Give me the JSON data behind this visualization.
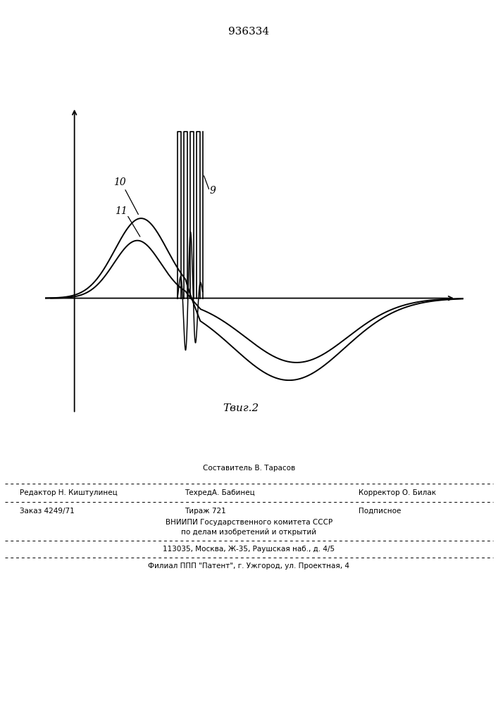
{
  "title": "936334",
  "fig_label": "Τвиг.2",
  "label_10": "10",
  "label_11": "11",
  "label_9": "9",
  "background_color": "#ffffff",
  "line_color": "#000000",
  "footer_line1": "Составитель В. Тарасов",
  "footer_line2a": "Редактор Н. Киштулинец",
  "footer_line2b": "ТехредА. Бабинец",
  "footer_line2c": "Корректор О. Билак",
  "footer_line3a": "Заказ 4249/71",
  "footer_line3b": "Тираж 721",
  "footer_line3c": "Подписное",
  "footer_line4": "ВНИИПИ Государственного комитета СССР",
  "footer_line5": "по делам изобретений и открытий",
  "footer_line6": "113035, Москва, Ж-35, Раушская наб., д. 4/5",
  "footer_line7": "Филиал ППП \"Патент\", г. Ужгород, ул. Проектная, 4"
}
